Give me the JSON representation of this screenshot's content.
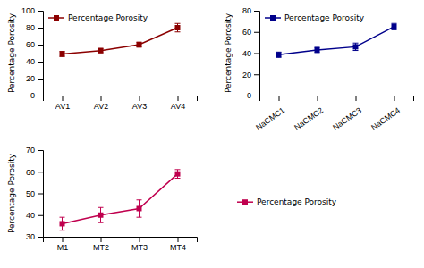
{
  "chart_data": [
    {
      "type": "line",
      "categories": [
        "AV1",
        "AV2",
        "AV3",
        "AV4"
      ],
      "series": [
        {
          "name": "Percentage Porosity",
          "color": "#8B0000",
          "marker": "square",
          "line_style": "solid",
          "values": [
            49,
            53,
            60,
            80
          ],
          "errors": [
            3,
            2.5,
            3,
            5
          ]
        }
      ],
      "ylim": [
        0,
        100
      ],
      "yticks": [
        0,
        20,
        40,
        60,
        80,
        100
      ],
      "y_label": "Percentage Porosity",
      "legend": "upper left",
      "grid": false
    },
    {
      "type": "line",
      "categories": [
        "NaCMC1",
        "NaCMC2",
        "NaCMC3",
        "NaCMC4"
      ],
      "series": [
        {
          "name": "Percentage Porosity",
          "color": "#00008B",
          "marker": "square",
          "line_style": "solid",
          "values": [
            38.5,
            43,
            46,
            65
          ],
          "errors": [
            2.5,
            2.5,
            3.5,
            3
          ]
        }
      ],
      "ylim": [
        0,
        80
      ],
      "yticks": [
        0,
        20,
        40,
        60,
        80
      ],
      "y_label": "Percentage Porosity",
      "legend": "upper left",
      "grid": false
    },
    {
      "type": "line",
      "categories": [
        "M1",
        "MT2",
        "MT3",
        "MT4"
      ],
      "series": [
        {
          "name": "Percentage Porosity",
          "color": "#C0004E",
          "marker": "square",
          "line_style": "solid",
          "values": [
            36,
            40,
            43,
            59
          ],
          "errors": [
            3,
            3.5,
            4,
            2
          ]
        }
      ],
      "ylim": [
        30,
        70
      ],
      "yticks": [
        30,
        40,
        50,
        60,
        70
      ],
      "y_label": "Percentage Porosity",
      "legend": "right",
      "grid": false
    }
  ]
}
